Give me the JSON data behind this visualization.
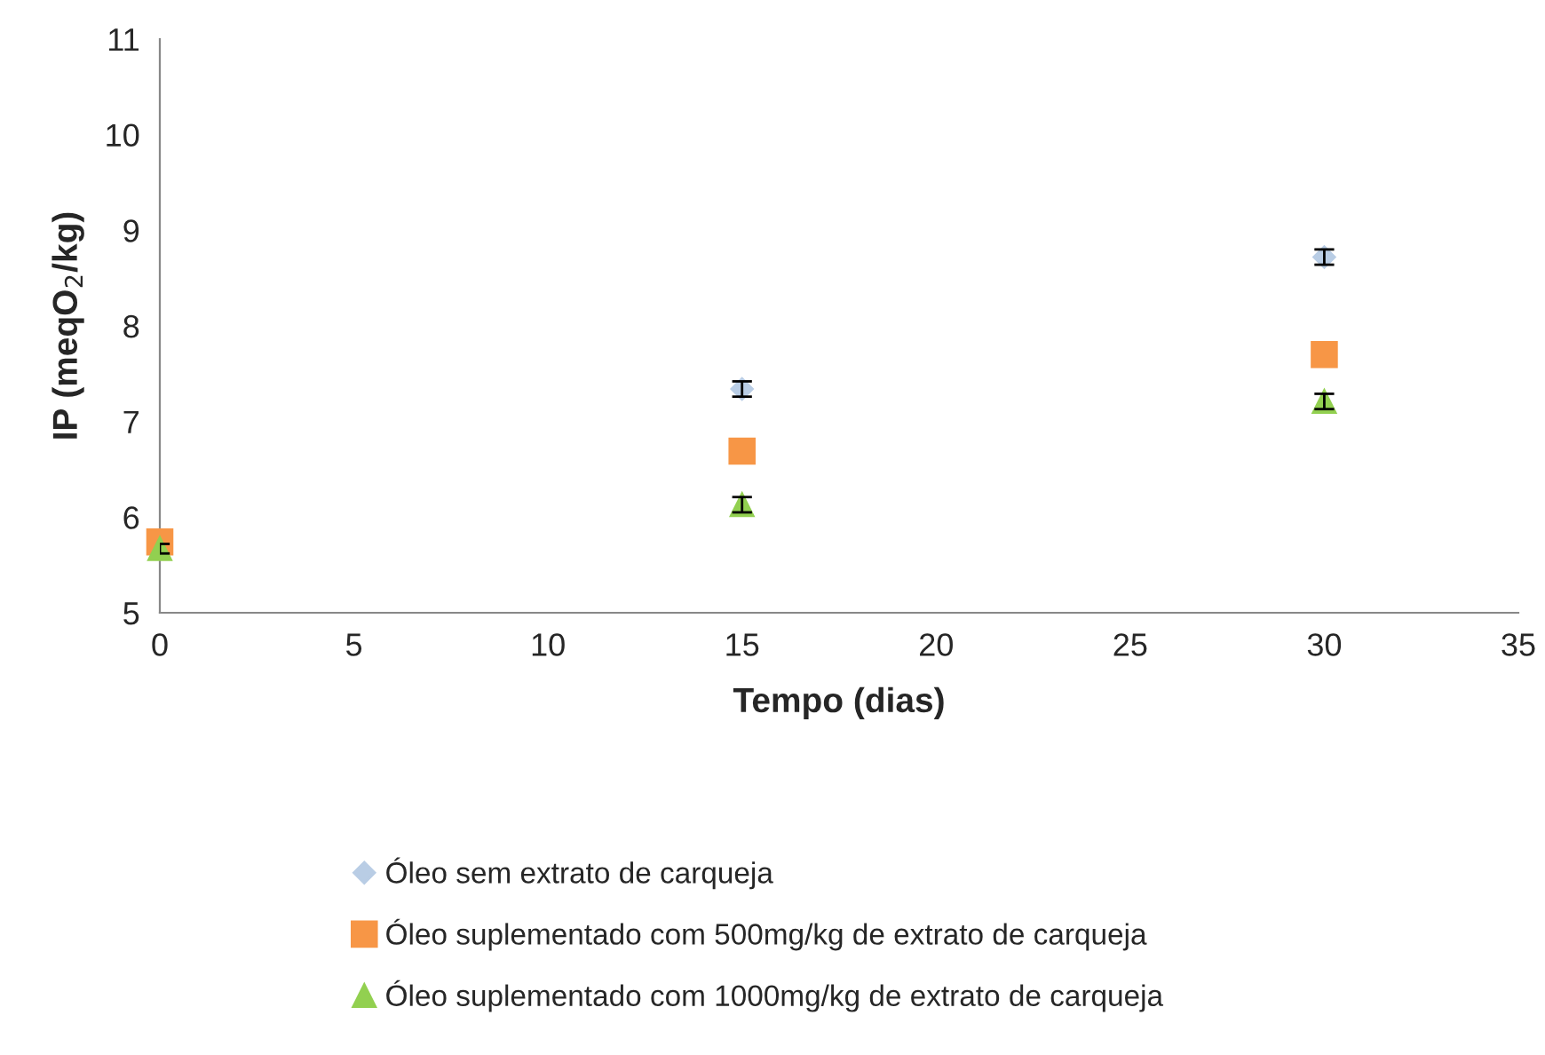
{
  "chart_data": {
    "type": "scatter",
    "xlabel": "Tempo (dias)",
    "ylabel": "IP (meqO$_{2}$/kg)",
    "xlim": [
      0,
      35
    ],
    "xticks": [
      0,
      5,
      10,
      15,
      20,
      25,
      30,
      35
    ],
    "ylim": [
      5,
      11
    ],
    "yticks": [
      5,
      6,
      7,
      8,
      9,
      10,
      11
    ],
    "grid": false,
    "legend": "bottom",
    "series": [
      {
        "name": "Óleo sem extrato de carqueja",
        "color": "#b9cde5",
        "marker": "diamond",
        "x": [
          15,
          30
        ],
        "values": [
          7.34,
          8.72
        ],
        "errors": [
          0.08,
          0.08
        ]
      },
      {
        "name": "Óleo suplementado com 500mg/kg de extrato de carqueja",
        "color": "#f79646",
        "marker": "square",
        "x": [
          0,
          15,
          30
        ],
        "values": [
          5.74,
          6.69,
          7.7
        ]
      },
      {
        "name": "Óleo suplementado com 1000mg/kg de extrato de carqueja",
        "color": "#92d050",
        "marker": "triangle",
        "x": [
          0,
          15,
          30
        ],
        "values": [
          5.67,
          6.13,
          7.21
        ],
        "errors": [
          0.05,
          0.08,
          0.08
        ]
      }
    ]
  }
}
